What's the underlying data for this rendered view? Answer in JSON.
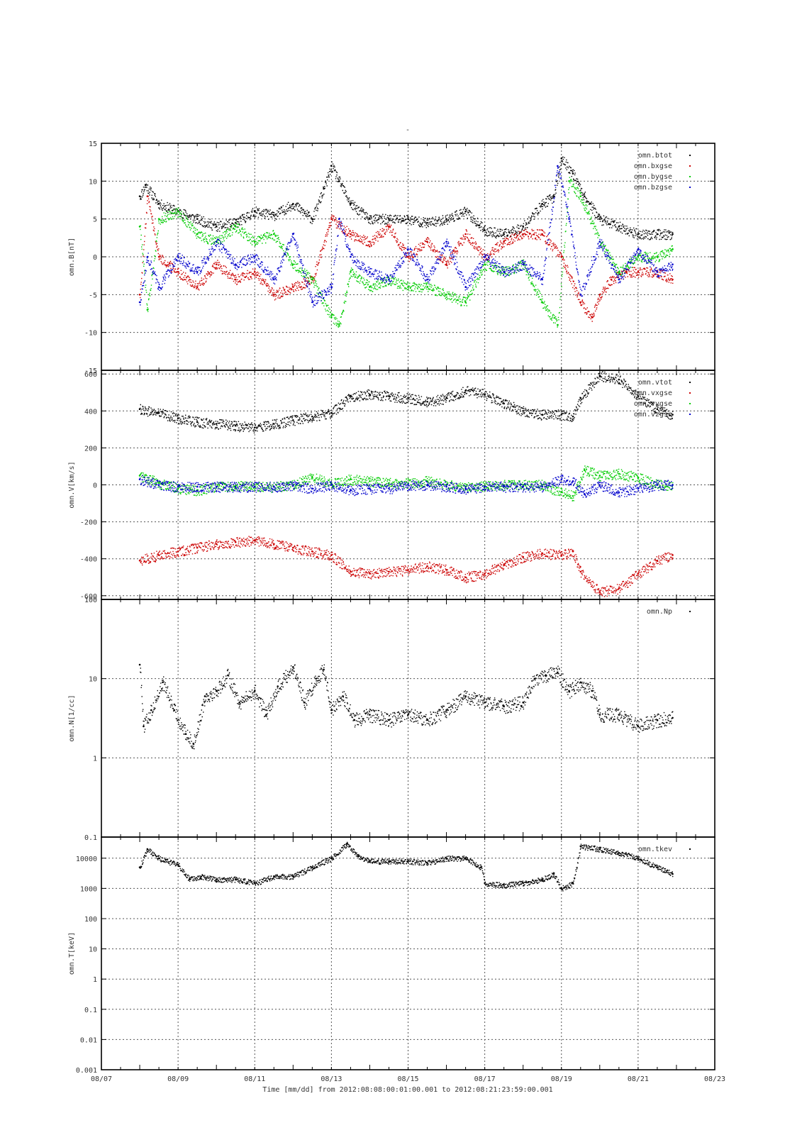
{
  "page_title_mark": "-",
  "xaxis": {
    "label": "Time [mm/dd]  from 2012:08:08:00:01:00.001  to  2012:08:21:23:59:00.001",
    "ticks": [
      "08/07",
      "08/09",
      "08/11",
      "08/13",
      "08/15",
      "08/17",
      "08/19",
      "08/21",
      "08/23"
    ]
  },
  "chart_data": [
    {
      "type": "scatter",
      "id": "b",
      "ylabel": "omn.B[nT]",
      "yscale": "linear",
      "ylim": [
        -15,
        15
      ],
      "yticks": [
        -15,
        -10,
        -5,
        0,
        5,
        10,
        15
      ],
      "ytick_labels": [
        "-15",
        "-10",
        "-5",
        "0",
        "5",
        "10",
        "15"
      ],
      "xlim_days": [
        7,
        23
      ],
      "grid": true,
      "legend_position": "top-right",
      "series": [
        {
          "name": "omn.btot",
          "color": "#000000",
          "x": [
            8.0,
            8.15,
            8.5,
            9.0,
            9.5,
            10.0,
            10.5,
            11.0,
            11.5,
            12.0,
            12.5,
            12.8,
            13.0,
            13.2,
            13.5,
            14.0,
            14.5,
            15.0,
            15.5,
            16.0,
            16.5,
            17.0,
            17.5,
            18.0,
            18.5,
            18.8,
            19.0,
            19.3,
            19.6,
            20.0,
            20.5,
            21.0,
            21.5,
            21.9
          ],
          "y": [
            8,
            9.5,
            7,
            6,
            5,
            4,
            4.5,
            6,
            5.5,
            7,
            5,
            9,
            12,
            10,
            7,
            5,
            5,
            5,
            4.5,
            5,
            6,
            3.5,
            3,
            4,
            7,
            8,
            13,
            11,
            8,
            5,
            4,
            3,
            3,
            3
          ]
        },
        {
          "name": "omn.bxgse",
          "color": "#cc0000",
          "x": [
            8.0,
            8.2,
            8.5,
            9.0,
            9.5,
            10.0,
            10.5,
            11.0,
            11.5,
            12.0,
            12.5,
            13.0,
            13.5,
            14.0,
            14.5,
            15.0,
            15.5,
            16.0,
            16.5,
            17.0,
            17.5,
            18.0,
            18.5,
            19.0,
            19.5,
            19.8,
            20.0,
            20.3,
            20.7,
            21.0,
            21.5,
            21.9
          ],
          "y": [
            -5,
            8,
            0,
            -2,
            -4,
            -1,
            -3,
            -2,
            -5,
            -4,
            -3,
            5,
            3,
            2,
            4,
            0,
            2,
            -1,
            3,
            0,
            2,
            3,
            3,
            0,
            -6,
            -8,
            -5,
            -3,
            -2,
            -2,
            -2,
            -3
          ]
        },
        {
          "name": "omn.bygse",
          "color": "#00cc00",
          "x": [
            8.0,
            8.2,
            8.5,
            9.0,
            9.5,
            10.0,
            10.5,
            11.0,
            11.5,
            12.0,
            12.5,
            13.0,
            13.2,
            13.5,
            14.0,
            14.5,
            15.0,
            15.5,
            16.0,
            16.5,
            17.0,
            17.5,
            18.0,
            18.5,
            18.9,
            19.2,
            19.5,
            20.0,
            20.5,
            21.0,
            21.5,
            21.9
          ],
          "y": [
            4,
            -7,
            5,
            6,
            3,
            2,
            4,
            2,
            3,
            -1,
            -3,
            -8,
            -9,
            -2,
            -4,
            -3,
            -4,
            -4,
            -5,
            -6,
            -1,
            -2,
            -1,
            -6,
            -9,
            10,
            8,
            2,
            -2,
            0,
            0,
            1
          ]
        },
        {
          "name": "omn.bzgse",
          "color": "#0000cc",
          "x": [
            8.0,
            8.2,
            8.5,
            9.0,
            9.5,
            10.0,
            10.5,
            11.0,
            11.5,
            12.0,
            12.5,
            13.0,
            13.2,
            13.5,
            14.0,
            14.5,
            15.0,
            15.5,
            16.0,
            16.5,
            17.0,
            17.5,
            18.0,
            18.5,
            18.9,
            19.2,
            19.5,
            20.0,
            20.5,
            21.0,
            21.5,
            21.9
          ],
          "y": [
            -6,
            0,
            -4,
            0,
            -2,
            2,
            -1,
            0,
            -3,
            3,
            -6,
            -4,
            5,
            0,
            -2,
            -3,
            1,
            -3,
            2,
            -4,
            0,
            -2,
            -1,
            -3,
            12,
            5,
            -5,
            2,
            -3,
            1,
            -2,
            -1
          ]
        }
      ]
    },
    {
      "type": "scatter",
      "id": "v",
      "ylabel": "omn.V[km/s]",
      "yscale": "linear",
      "ylim": [
        -620,
        620
      ],
      "yticks": [
        -600,
        -400,
        -200,
        0,
        200,
        400,
        600
      ],
      "ytick_labels": [
        "-600",
        "-400",
        "-200",
        "0",
        "200",
        "400",
        "600"
      ],
      "xlim_days": [
        7,
        23
      ],
      "grid": true,
      "legend_position": "top-right",
      "series": [
        {
          "name": "omn.vtot",
          "color": "#000000",
          "x": [
            8.0,
            8.5,
            9.0,
            9.5,
            10.0,
            10.5,
            11.0,
            11.5,
            12.0,
            12.5,
            13.0,
            13.5,
            14.0,
            14.5,
            15.0,
            15.5,
            16.0,
            16.5,
            17.0,
            17.5,
            18.0,
            18.5,
            19.0,
            19.3,
            19.5,
            20.0,
            20.5,
            21.0,
            21.5,
            21.9
          ],
          "y": [
            410,
            390,
            360,
            340,
            330,
            320,
            310,
            330,
            350,
            370,
            390,
            480,
            490,
            480,
            470,
            450,
            470,
            510,
            490,
            440,
            400,
            380,
            380,
            370,
            470,
            590,
            570,
            480,
            410,
            380
          ]
        },
        {
          "name": "omn.vxgse",
          "color": "#cc0000",
          "x": [
            8.0,
            8.5,
            9.0,
            9.5,
            10.0,
            10.5,
            11.0,
            11.5,
            12.0,
            12.5,
            13.0,
            13.5,
            14.0,
            14.5,
            15.0,
            15.5,
            16.0,
            16.5,
            17.0,
            17.5,
            18.0,
            18.5,
            19.0,
            19.3,
            19.5,
            20.0,
            20.5,
            21.0,
            21.5,
            21.9
          ],
          "y": [
            -410,
            -380,
            -360,
            -340,
            -320,
            -310,
            -300,
            -320,
            -340,
            -360,
            -380,
            -470,
            -480,
            -470,
            -460,
            -440,
            -460,
            -500,
            -480,
            -430,
            -390,
            -370,
            -380,
            -360,
            -470,
            -580,
            -560,
            -480,
            -410,
            -380
          ]
        },
        {
          "name": "omn.vygse",
          "color": "#00cc00",
          "x": [
            8.0,
            8.5,
            9.0,
            9.5,
            10.0,
            10.5,
            11.0,
            11.5,
            12.0,
            12.5,
            13.0,
            13.5,
            14.0,
            14.5,
            15.0,
            15.5,
            16.0,
            16.5,
            17.0,
            17.5,
            18.0,
            18.5,
            19.0,
            19.3,
            19.6,
            20.0,
            20.5,
            21.0,
            21.5,
            21.9
          ],
          "y": [
            50,
            10,
            -20,
            -30,
            -10,
            -5,
            -10,
            -10,
            0,
            40,
            10,
            30,
            20,
            10,
            10,
            20,
            0,
            -10,
            -5,
            0,
            0,
            0,
            -40,
            -60,
            80,
            50,
            60,
            40,
            0,
            0
          ]
        },
        {
          "name": "omn.vzgse",
          "color": "#0000cc",
          "x": [
            8.0,
            8.5,
            9.0,
            9.5,
            10.0,
            10.5,
            11.0,
            11.5,
            12.0,
            12.5,
            13.0,
            13.5,
            14.0,
            14.5,
            15.0,
            15.5,
            16.0,
            16.5,
            17.0,
            17.5,
            18.0,
            18.5,
            19.0,
            19.3,
            19.6,
            20.0,
            20.5,
            21.0,
            21.5,
            21.9
          ],
          "y": [
            30,
            0,
            -10,
            -10,
            -10,
            -10,
            -10,
            -10,
            -5,
            -20,
            0,
            -30,
            -20,
            -20,
            0,
            0,
            -10,
            -20,
            -10,
            -10,
            -10,
            -10,
            30,
            20,
            -50,
            0,
            -40,
            -20,
            0,
            0
          ]
        }
      ]
    },
    {
      "type": "scatter",
      "id": "n",
      "ylabel": "omn.N[1/cc]",
      "yscale": "log",
      "ylim": [
        0.1,
        100
      ],
      "yticks": [
        0.1,
        1,
        10,
        100
      ],
      "ytick_labels": [
        "0.1",
        "1",
        "10",
        "100"
      ],
      "xlim_days": [
        7,
        23
      ],
      "grid": true,
      "legend_position": "top-right",
      "series": [
        {
          "name": "omn.Np",
          "color": "#000000",
          "x": [
            8.0,
            8.1,
            8.3,
            8.6,
            8.9,
            9.2,
            9.4,
            9.7,
            10.0,
            10.3,
            10.6,
            11.0,
            11.3,
            11.6,
            12.0,
            12.3,
            12.6,
            12.8,
            13.0,
            13.3,
            13.6,
            14.0,
            14.5,
            15.0,
            15.5,
            16.0,
            16.5,
            17.0,
            17.5,
            18.0,
            18.3,
            18.6,
            18.9,
            19.2,
            19.5,
            19.8,
            20.0,
            20.5,
            21.0,
            21.5,
            21.9
          ],
          "y": [
            15,
            2.5,
            4,
            9,
            4,
            2,
            1.5,
            6,
            7,
            11,
            5,
            7,
            3.5,
            8,
            14,
            5,
            10,
            13,
            4,
            6,
            3,
            3.5,
            3,
            3.5,
            3,
            4,
            6,
            5,
            4.5,
            5,
            10,
            11,
            12,
            7,
            9,
            7,
            3.5,
            3.5,
            2.5,
            3,
            3.2
          ]
        }
      ]
    },
    {
      "type": "scatter",
      "id": "t",
      "ylabel": "omn.T[keV]",
      "yscale": "log",
      "ylim": [
        0.001,
        50000
      ],
      "yticks": [
        0.001,
        0.01,
        0.1,
        1,
        10,
        100,
        1000,
        10000
      ],
      "ytick_labels": [
        "0.001",
        "0.01",
        "0.1",
        "1",
        "10",
        "100",
        "1000",
        "10000"
      ],
      "xlim_days": [
        7,
        23
      ],
      "grid": true,
      "legend_position": "top-right",
      "series": [
        {
          "name": "omn.tkev",
          "color": "#000000",
          "x": [
            8.0,
            8.2,
            8.5,
            9.0,
            9.3,
            9.6,
            10.0,
            10.5,
            11.0,
            11.5,
            12.0,
            12.5,
            13.0,
            13.4,
            13.7,
            14.0,
            14.5,
            15.0,
            15.5,
            16.0,
            16.5,
            16.9,
            17.0,
            17.5,
            18.0,
            18.5,
            18.8,
            19.0,
            19.3,
            19.5,
            20.0,
            20.5,
            21.0,
            21.5,
            21.9
          ],
          "y": [
            5000,
            20000,
            10000,
            6000,
            2000,
            2500,
            2000,
            2000,
            1500,
            2500,
            2500,
            5000,
            10000,
            30000,
            12000,
            8000,
            8000,
            8000,
            7000,
            10000,
            10000,
            5000,
            1500,
            1300,
            1500,
            2000,
            3000,
            1000,
            1500,
            25000,
            20000,
            15000,
            10000,
            5000,
            3000
          ]
        }
      ]
    }
  ]
}
